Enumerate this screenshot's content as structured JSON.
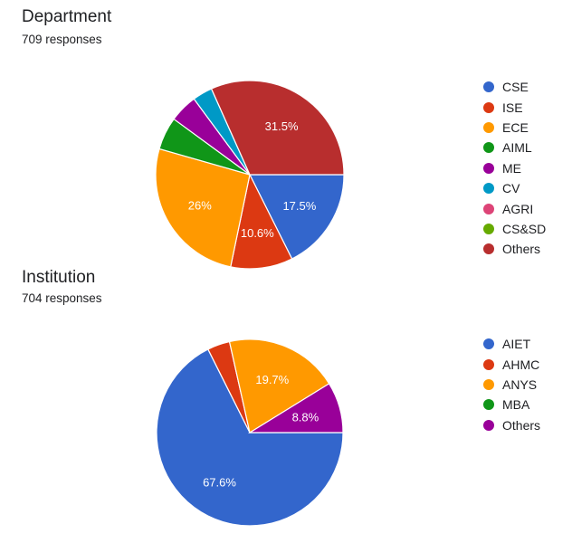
{
  "chart_data": [
    {
      "type": "pie",
      "title": "Department",
      "subtitle": "709 responses",
      "legend_position": "right",
      "categories": [
        "CSE",
        "ISE",
        "ECE",
        "AIML",
        "ME",
        "CV",
        "AGRI",
        "CS&SD",
        "Others"
      ],
      "values": [
        17.5,
        10.6,
        26.0,
        5.6,
        4.8,
        3.4,
        0.0,
        0.0,
        31.5
      ],
      "labels": [
        "17.5%",
        "10.6%",
        "26%",
        "",
        "",
        "",
        "",
        "",
        "31.5%"
      ],
      "colors": [
        "#3366cc",
        "#dc3912",
        "#ff9900",
        "#109618",
        "#990099",
        "#0099c6",
        "#dd4477",
        "#66aa00",
        "#b82e2e"
      ]
    },
    {
      "type": "pie",
      "title": "Institution",
      "subtitle": "704 responses",
      "legend_position": "right",
      "categories": [
        "AIET",
        "AHMC",
        "ANYS",
        "MBA",
        "Others"
      ],
      "values": [
        67.6,
        3.9,
        19.7,
        0.0,
        8.8
      ],
      "labels": [
        "67.6%",
        "",
        "19.7%",
        "",
        "8.8%"
      ],
      "colors": [
        "#3366cc",
        "#dc3912",
        "#ff9900",
        "#109618",
        "#990099"
      ]
    }
  ]
}
